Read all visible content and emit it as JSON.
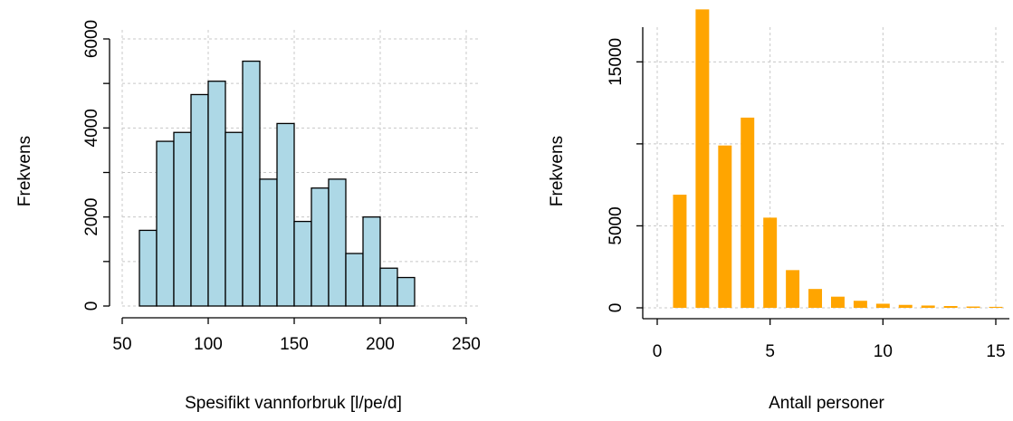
{
  "chart_data": [
    {
      "type": "bar",
      "style": "histogram",
      "xlabel": "Spesifikt vannforbruk [l/pe/d]",
      "ylabel": "Frekvens",
      "xlim": [
        50,
        250
      ],
      "ylim": [
        0,
        6000
      ],
      "x_ticks": [
        50,
        100,
        150,
        200,
        250
      ],
      "y_ticks": [
        0,
        2000,
        4000,
        6000
      ],
      "grid": true,
      "bar_color": "#add8e6",
      "bin_edges": [
        60,
        70,
        80,
        90,
        100,
        110,
        120,
        130,
        140,
        150,
        160,
        170,
        180,
        190,
        200,
        210,
        220
      ],
      "values": [
        1700,
        3700,
        3900,
        4750,
        5050,
        3900,
        5500,
        2850,
        4100,
        1900,
        2650,
        2850,
        1180,
        2000,
        850,
        640
      ]
    },
    {
      "type": "bar",
      "xlabel": "Antall personer",
      "ylabel": "Frekvens",
      "xlim": [
        0,
        15
      ],
      "ylim": [
        0,
        18000
      ],
      "x_ticks": [
        0,
        5,
        10,
        15
      ],
      "y_ticks": [
        0,
        5000,
        15000
      ],
      "grid": true,
      "bar_color": "#ffa500",
      "categories": [
        1,
        2,
        3,
        4,
        5,
        6,
        7,
        8,
        9,
        10,
        11,
        12,
        13,
        14,
        15
      ],
      "values": [
        6900,
        18200,
        9900,
        11600,
        5500,
        2300,
        1150,
        680,
        430,
        250,
        180,
        140,
        110,
        80,
        60
      ]
    }
  ]
}
